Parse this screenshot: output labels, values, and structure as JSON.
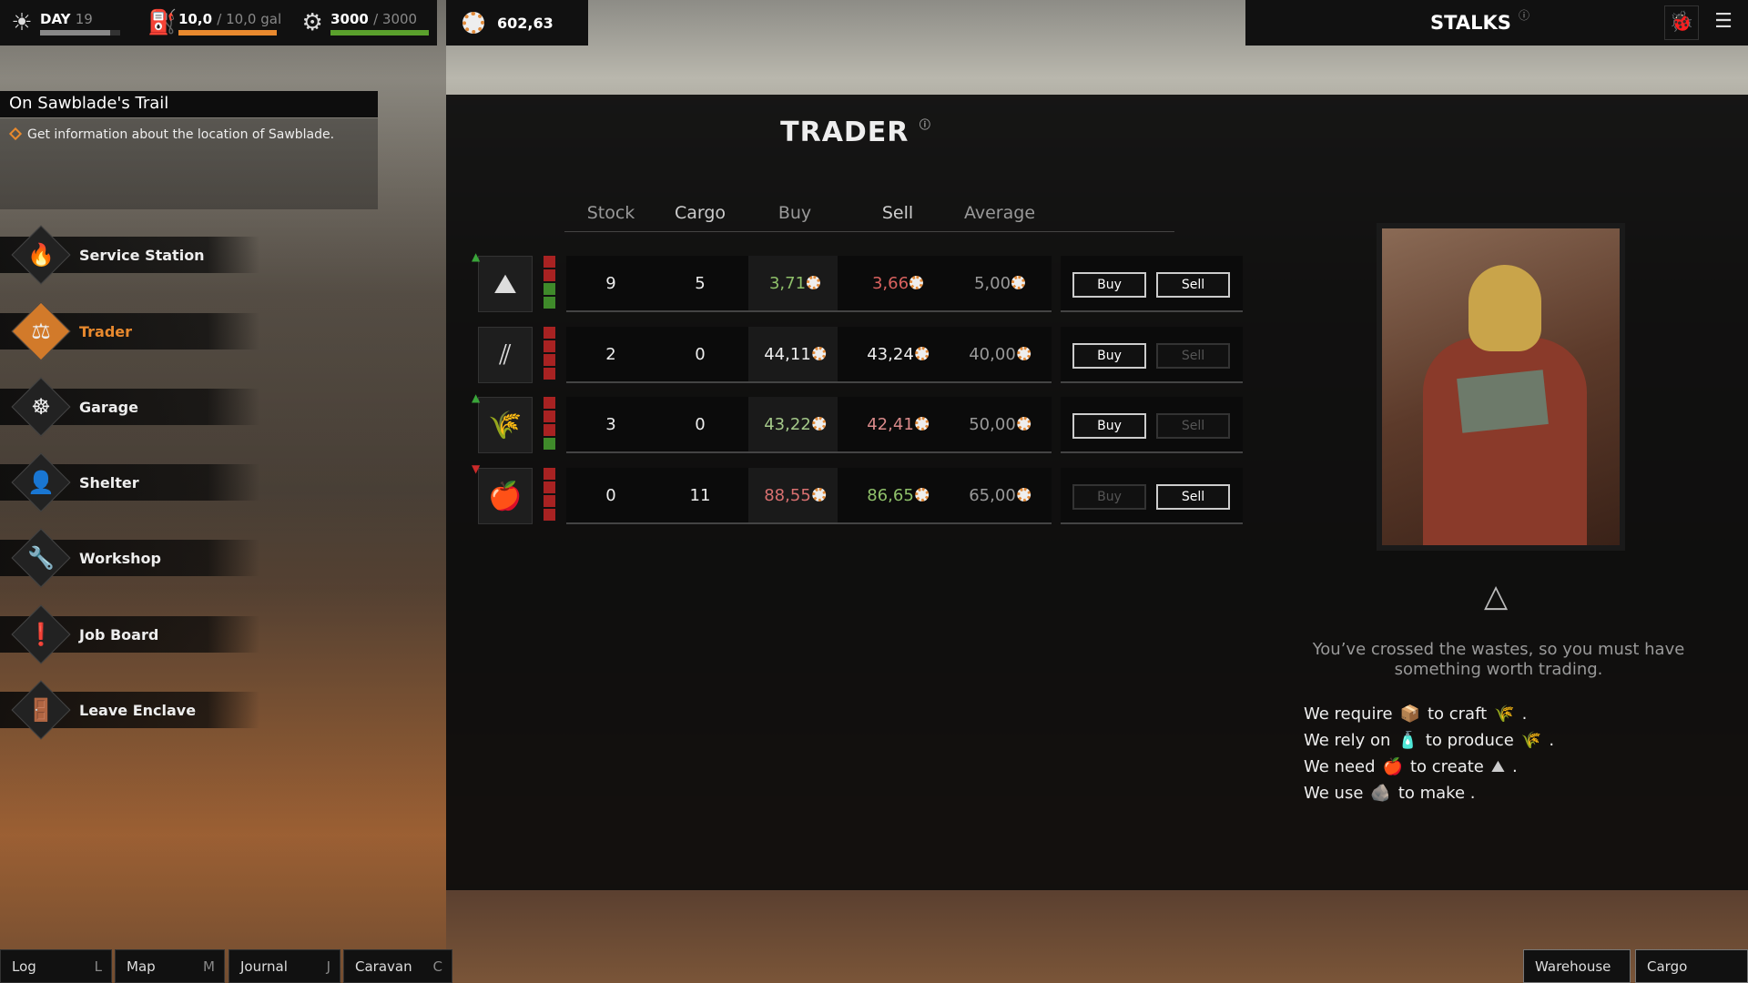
{
  "hud": {
    "day_label": "DAY",
    "day": "19",
    "day_progress": 0.87,
    "fuel": "10,0",
    "fuel_max": "/ 10,0 gal",
    "fuel_progress": 1.0,
    "health": "3000",
    "health_max": "/ 3000",
    "health_progress": 1.0,
    "money": "602,63",
    "caravan_name": "STALKS"
  },
  "quest": {
    "title": "On Sawblade's Trail",
    "objective": "Get information about the location of Sawblade."
  },
  "nav": [
    {
      "label": "Service Station",
      "icon": "flame-icon"
    },
    {
      "label": "Trader",
      "icon": "scales-icon",
      "active": true
    },
    {
      "label": "Garage",
      "icon": "steering-wheel-icon"
    },
    {
      "label": "Shelter",
      "icon": "person-icon"
    },
    {
      "label": "Workshop",
      "icon": "wrench-icon"
    },
    {
      "label": "Job Board",
      "icon": "notice-board-icon"
    },
    {
      "label": "Leave Enclave",
      "icon": "exit-door-icon"
    }
  ],
  "trader": {
    "title": "TRADER",
    "headers": {
      "stock": "Stock",
      "cargo": "Cargo",
      "buy": "Buy",
      "sell": "Sell",
      "average": "Average"
    },
    "buy_label": "Buy",
    "sell_label": "Sell",
    "rows": [
      {
        "item": "scrap",
        "trend": "up",
        "stock": "9",
        "cargo": "5",
        "buy": "3,71",
        "buy_color": "#8fc06a",
        "sell": "3,66",
        "sell_color": "#d9625f",
        "average": "5,00",
        "buy_enabled": true,
        "sell_enabled": true,
        "supply": [
          "red",
          "red",
          "green",
          "green"
        ]
      },
      {
        "item": "pipes",
        "trend": "none",
        "stock": "2",
        "cargo": "0",
        "buy": "44,11",
        "buy_color": "#eeeeee",
        "sell": "43,24",
        "sell_color": "#eeeeee",
        "average": "40,00",
        "buy_enabled": true,
        "sell_enabled": false,
        "supply": [
          "red",
          "red",
          "red",
          "red"
        ]
      },
      {
        "item": "wheat",
        "trend": "up",
        "stock": "3",
        "cargo": "0",
        "buy": "43,22",
        "buy_color": "#a5c98a",
        "sell": "42,41",
        "sell_color": "#d98a8a",
        "average": "50,00",
        "buy_enabled": true,
        "sell_enabled": false,
        "supply": [
          "red",
          "red",
          "red",
          "green"
        ]
      },
      {
        "item": "apple",
        "trend": "down",
        "stock": "0",
        "cargo": "11",
        "buy": "88,55",
        "buy_color": "#d97070",
        "sell": "86,65",
        "sell_color": "#8fc06a",
        "average": "65,00",
        "buy_enabled": false,
        "sell_enabled": true,
        "supply": [
          "red",
          "red",
          "red",
          "red"
        ]
      }
    ]
  },
  "dialog": {
    "flavor": "You’ve crossed the wastes, so you must have something worth trading.",
    "needs": [
      {
        "a": "We require",
        "b": "to craft",
        "end": "."
      },
      {
        "a": "We rely on",
        "b": "to produce",
        "end": "."
      },
      {
        "a": "We need",
        "b": "to create",
        "end": "."
      },
      {
        "a": "We use",
        "b": "to make .",
        "end": ""
      }
    ]
  },
  "bottom": {
    "left": [
      {
        "label": "Log",
        "key": "L"
      },
      {
        "label": "Map",
        "key": "M"
      },
      {
        "label": "Journal",
        "key": "J"
      },
      {
        "label": "Caravan",
        "key": "C"
      }
    ],
    "right": [
      {
        "label": "Warehouse"
      },
      {
        "label": "Cargo"
      }
    ]
  },
  "colors": {
    "accent": "#e8892e",
    "fuel_bar": "#e8892e",
    "health_bar": "#5aa02c",
    "up": "#3aa53a",
    "down": "#cc2a2a"
  }
}
